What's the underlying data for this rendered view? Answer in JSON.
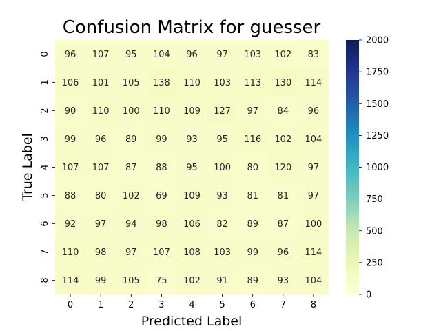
{
  "chart_data": {
    "type": "heatmap",
    "title": "Confusion Matrix for guesser",
    "xlabel": "Predicted Label",
    "ylabel": "True Label",
    "x_categories": [
      "0",
      "1",
      "2",
      "3",
      "4",
      "5",
      "6",
      "7",
      "8"
    ],
    "y_categories": [
      "0",
      "1",
      "2",
      "3",
      "4",
      "5",
      "6",
      "7",
      "8"
    ],
    "values": [
      [
        96,
        107,
        95,
        104,
        96,
        97,
        103,
        102,
        83
      ],
      [
        106,
        101,
        105,
        138,
        110,
        103,
        113,
        130,
        114
      ],
      [
        90,
        110,
        100,
        110,
        109,
        127,
        97,
        84,
        96
      ],
      [
        99,
        96,
        89,
        99,
        93,
        95,
        116,
        102,
        104
      ],
      [
        107,
        107,
        87,
        88,
        95,
        100,
        80,
        120,
        97
      ],
      [
        88,
        80,
        102,
        69,
        109,
        93,
        81,
        81,
        97
      ],
      [
        92,
        97,
        94,
        98,
        106,
        82,
        89,
        87,
        100
      ],
      [
        110,
        98,
        97,
        107,
        108,
        103,
        99,
        96,
        114
      ],
      [
        114,
        99,
        105,
        75,
        102,
        91,
        89,
        93,
        104
      ]
    ],
    "colorbar": {
      "colormap": "YlGnBu",
      "range": [
        0,
        2000
      ],
      "ticks": [
        0,
        250,
        500,
        750,
        1000,
        1250,
        1500,
        1750,
        2000
      ]
    }
  }
}
